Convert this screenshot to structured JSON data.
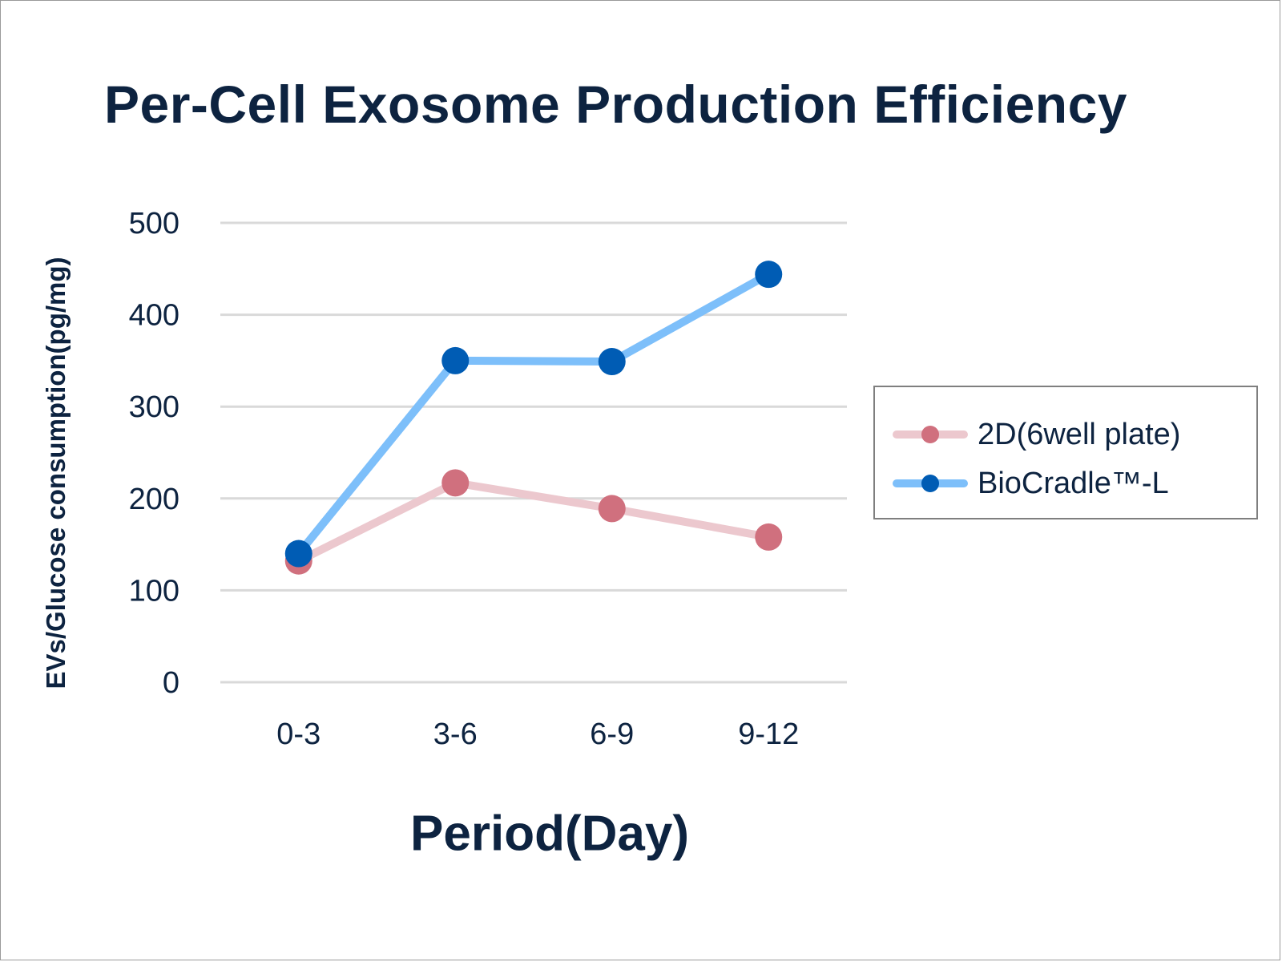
{
  "chart_data": {
    "type": "line",
    "title": "Per-Cell Exosome Production Efficiency",
    "xlabel": "Period(Day)",
    "ylabel": "EVs/Glucose consumption(pg/mg)",
    "categories": [
      "0-3",
      "3-6",
      "6-9",
      "9-12"
    ],
    "ylim": [
      0,
      500
    ],
    "yticks": [
      0,
      100,
      200,
      300,
      400,
      500
    ],
    "grid": true,
    "legend_position": "right",
    "series": [
      {
        "name": "2D(6well plate)",
        "values": [
          132,
          217,
          189,
          158
        ],
        "line_color": "#ecc8ce",
        "marker_color": "#d0707e"
      },
      {
        "name": "BioCradle™-L",
        "values": [
          140,
          350,
          349,
          444
        ],
        "line_color": "#7dbffa",
        "marker_color": "#005cb4"
      }
    ],
    "grid_color": "#d9d9d9",
    "text_color": "#0d2340"
  }
}
